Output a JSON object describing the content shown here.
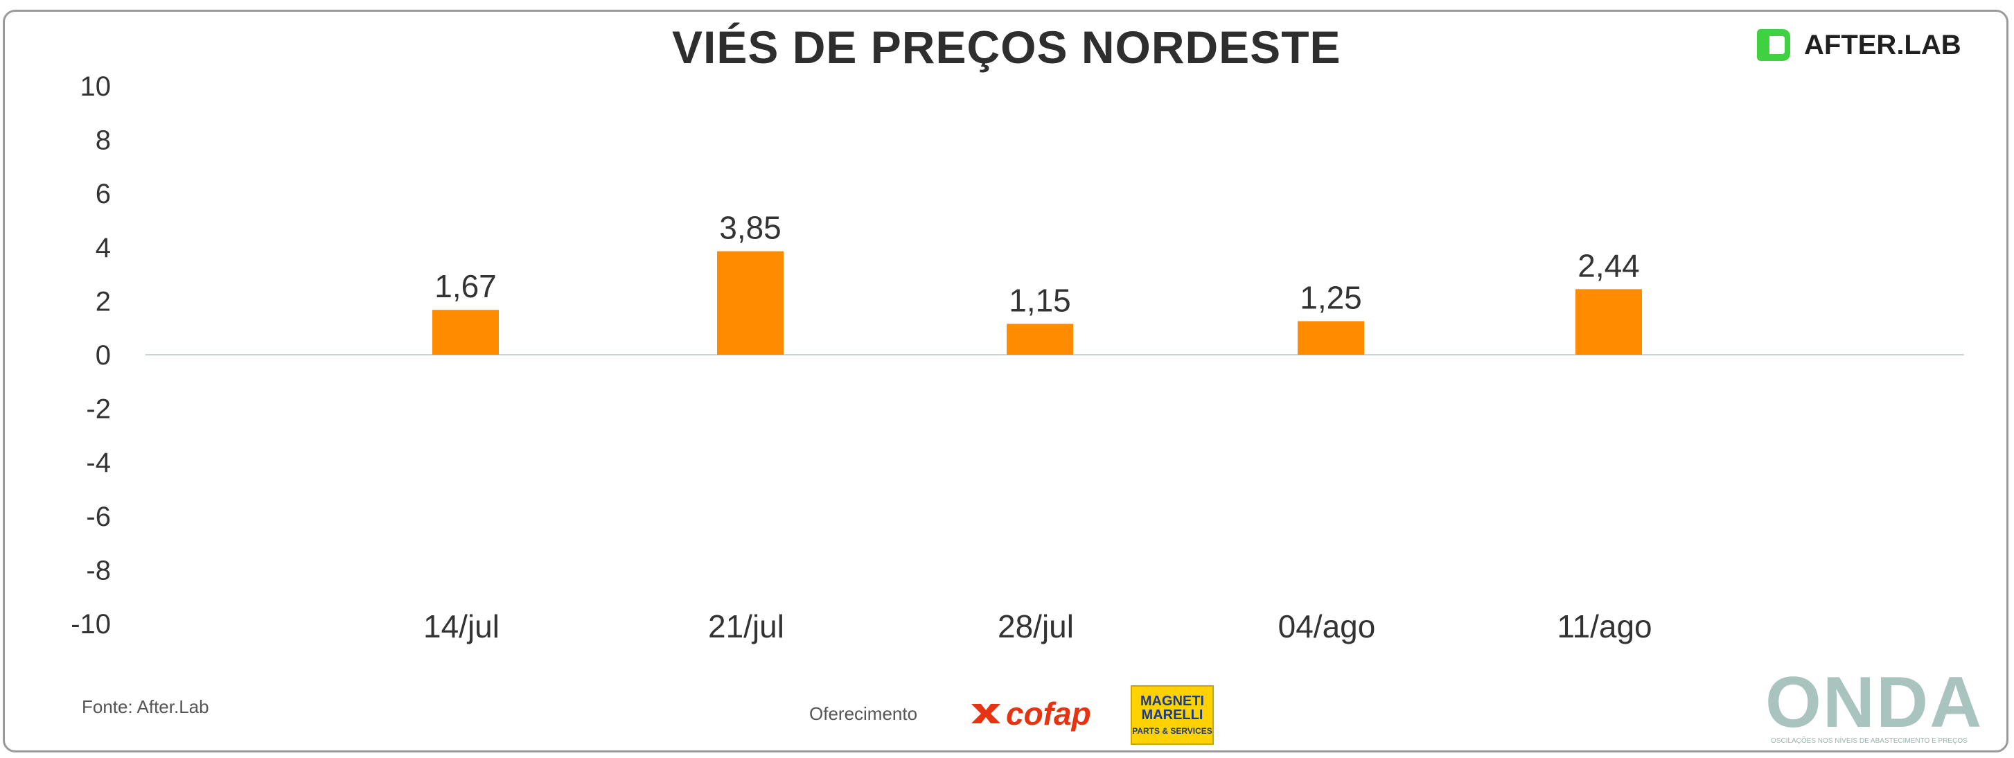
{
  "header": {
    "title": "VIÉS DE PREÇOS NORDESTE",
    "logo_text": "AFTER.LAB",
    "logo_icon": "afterlab-logo-icon"
  },
  "chart_data": {
    "type": "bar",
    "title": "VIÉS DE PREÇOS NORDESTE",
    "xlabel": "",
    "ylabel": "",
    "categories": [
      "14/jul",
      "21/jul",
      "28/jul",
      "04/ago",
      "11/ago"
    ],
    "values": [
      1.67,
      3.85,
      1.15,
      1.25,
      2.44
    ],
    "value_labels": [
      "1,67",
      "3,85",
      "1,15",
      "1,25",
      "2,44"
    ],
    "ylim": [
      -10,
      10
    ],
    "yticks": [
      "10",
      "8",
      "6",
      "4",
      "2",
      "0",
      "-2",
      "-4",
      "-6",
      "-8",
      "-10"
    ],
    "bar_color": "#ff8c00",
    "grid": false,
    "legend": "none"
  },
  "footer": {
    "source": "Fonte: After.Lab",
    "sponsor_label": "Oferecimento",
    "cofap": "cofap",
    "magneti_line1": "MAGNETI",
    "magneti_line2": "MARELLI",
    "magneti_sub": "PARTS & SERVICES",
    "onda": "ONDA",
    "onda_sub": "OSCILAÇÕES NOS NÍVEIS DE ABASTECIMENTO E PREÇOS"
  },
  "colors": {
    "accent": "#ff8c00",
    "logo_green": "#3fd13f",
    "cofap_red": "#e63312",
    "magneti_yellow": "#ffd200",
    "onda_teal": "#a9c4bf"
  }
}
